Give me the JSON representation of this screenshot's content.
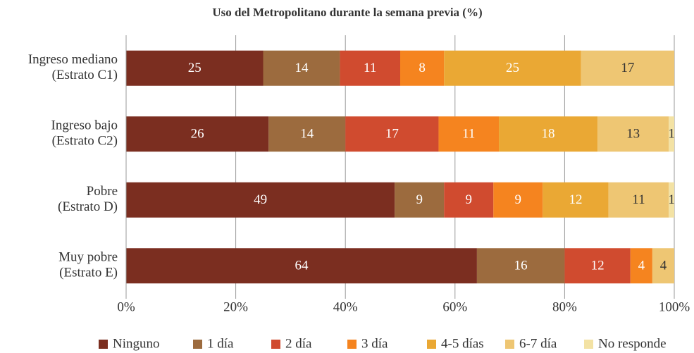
{
  "chart_data": {
    "type": "stacked-bar-horizontal",
    "title": "Uso del Metropolitano durante la semana previa (%)",
    "categories": [
      [
        "Ingreso mediano",
        "(Estrato C1)"
      ],
      [
        "Ingreso bajo",
        "(Estrato C2)"
      ],
      [
        "Pobre",
        "(Estrato D)"
      ],
      [
        "Muy pobre",
        "(Estrato E)"
      ]
    ],
    "series": [
      {
        "name": "Ninguno",
        "color": "#7b2e20",
        "values": [
          25,
          26,
          49,
          64
        ]
      },
      {
        "name": "1 día",
        "color": "#9c6b3e",
        "values": [
          14,
          14,
          9,
          16
        ]
      },
      {
        "name": "2 día",
        "color": "#d04b2f",
        "values": [
          11,
          17,
          9,
          12
        ]
      },
      {
        "name": "3 día",
        "color": "#f5841f",
        "values": [
          8,
          11,
          9,
          4
        ]
      },
      {
        "name": "4-5 días",
        "color": "#eaa834",
        "values": [
          25,
          18,
          12,
          null
        ]
      },
      {
        "name": "6-7 día",
        "color": "#eec673",
        "values": [
          17,
          13,
          11,
          4
        ]
      },
      {
        "name": "No responde",
        "color": "#f3e2a4",
        "values": [
          null,
          1,
          1,
          null
        ]
      }
    ],
    "xlim": [
      0,
      100
    ],
    "xticks": [
      {
        "value": 0,
        "label": "0%"
      },
      {
        "value": 20,
        "label": "20%"
      },
      {
        "value": 40,
        "label": "40%"
      },
      {
        "value": 60,
        "label": "60%"
      },
      {
        "value": 80,
        "label": "80%"
      },
      {
        "value": 100,
        "label": "100%"
      }
    ],
    "grid": true,
    "legend": "bottom"
  }
}
